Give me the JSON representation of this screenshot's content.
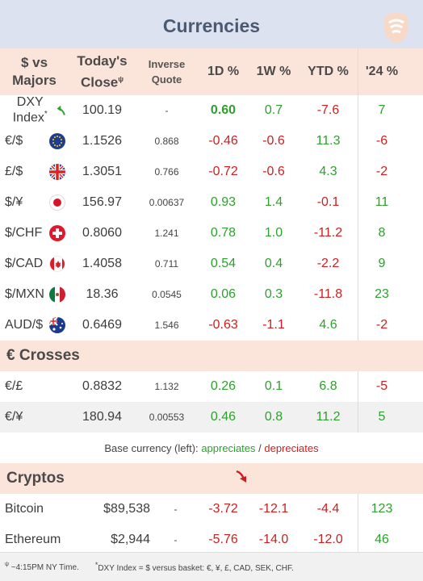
{
  "title": "Currencies",
  "header": {
    "col1": "$ vs Majors",
    "col2": "Today's Close",
    "col2_sup": "ψ",
    "col3": "Inverse Quote",
    "col4": "1D %",
    "col5": "1W %",
    "col6": "YTD %",
    "col7": "'24 %"
  },
  "majors": [
    {
      "name": "DXY Index",
      "sup": "*",
      "icon": "up-arrow-icon",
      "close": "100.19",
      "inverse": "-",
      "d1": "0.60",
      "w1": "0.7",
      "ytd": "-7.6",
      "y24": "7"
    },
    {
      "name": "€/$",
      "icon": "eu-flag-icon",
      "close": "1.1526",
      "inverse": "0.868",
      "d1": "-0.46",
      "w1": "-0.6",
      "ytd": "11.3",
      "y24": "-6"
    },
    {
      "name": "£/$",
      "icon": "uk-flag-icon",
      "close": "1.3051",
      "inverse": "0.766",
      "d1": "-0.72",
      "w1": "-0.6",
      "ytd": "4.3",
      "y24": "-2"
    },
    {
      "name": "$/¥",
      "icon": "japan-flag-icon",
      "close": "156.97",
      "inverse": "0.00637",
      "d1": "0.93",
      "w1": "1.4",
      "ytd": "-0.1",
      "y24": "11"
    },
    {
      "name": "$/CHF",
      "icon": "swiss-flag-icon",
      "close": "0.8060",
      "inverse": "1.241",
      "d1": "0.78",
      "w1": "1.0",
      "ytd": "-11.2",
      "y24": "8"
    },
    {
      "name": "$/CAD",
      "icon": "canada-flag-icon",
      "close": "1.4058",
      "inverse": "0.711",
      "d1": "0.54",
      "w1": "0.4",
      "ytd": "-2.2",
      "y24": "9"
    },
    {
      "name": "$/MXN",
      "icon": "mexico-flag-icon",
      "close": "18.36",
      "inverse": "0.0545",
      "d1": "0.06",
      "w1": "0.3",
      "ytd": "-11.8",
      "y24": "23"
    },
    {
      "name": "AUD/$",
      "icon": "australia-flag-icon",
      "close": "0.6469",
      "inverse": "1.546",
      "d1": "-0.63",
      "w1": "-1.1",
      "ytd": "4.6",
      "y24": "-2"
    }
  ],
  "crosses_title": "€ Crosses",
  "crosses": [
    {
      "name": "€/£",
      "close": "0.8832",
      "inverse": "1.132",
      "d1": "0.26",
      "w1": "0.1",
      "ytd": "6.8",
      "y24": "-5"
    },
    {
      "name": "€/¥",
      "close": "180.94",
      "inverse": "0.00553",
      "d1": "0.46",
      "w1": "0.8",
      "ytd": "11.2",
      "y24": "5"
    }
  ],
  "note": {
    "prefix": "Base currency (left):",
    "appreciates": "appreciates",
    "sep": "/",
    "depreciates": "depreciates"
  },
  "cryptos_title": "Cryptos",
  "cryptos_icon": "down-arrow-icon",
  "cryptos": [
    {
      "name": "Bitcoin",
      "close": "$89,538",
      "inverse": "-",
      "d1": "-3.72",
      "w1": "-12.1",
      "ytd": "-4.4",
      "y24": "123"
    },
    {
      "name": "Ethereum",
      "close": "$2,944",
      "inverse": "-",
      "d1": "-5.76",
      "w1": "-14.0",
      "ytd": "-12.0",
      "y24": "46"
    }
  ],
  "footer": {
    "time_sym": "ψ",
    "time_note": "~4:15PM NY Time.",
    "dxy_sym": "*",
    "dxy_note": "DXY Index = $ versus basket: €, ¥, £, CAD, SEK, CHF."
  },
  "colors": {
    "positive": "#2ea02e",
    "negative": "#cc2020",
    "header_bg": "#fbe4da",
    "title_bg": "#dde2f0"
  }
}
